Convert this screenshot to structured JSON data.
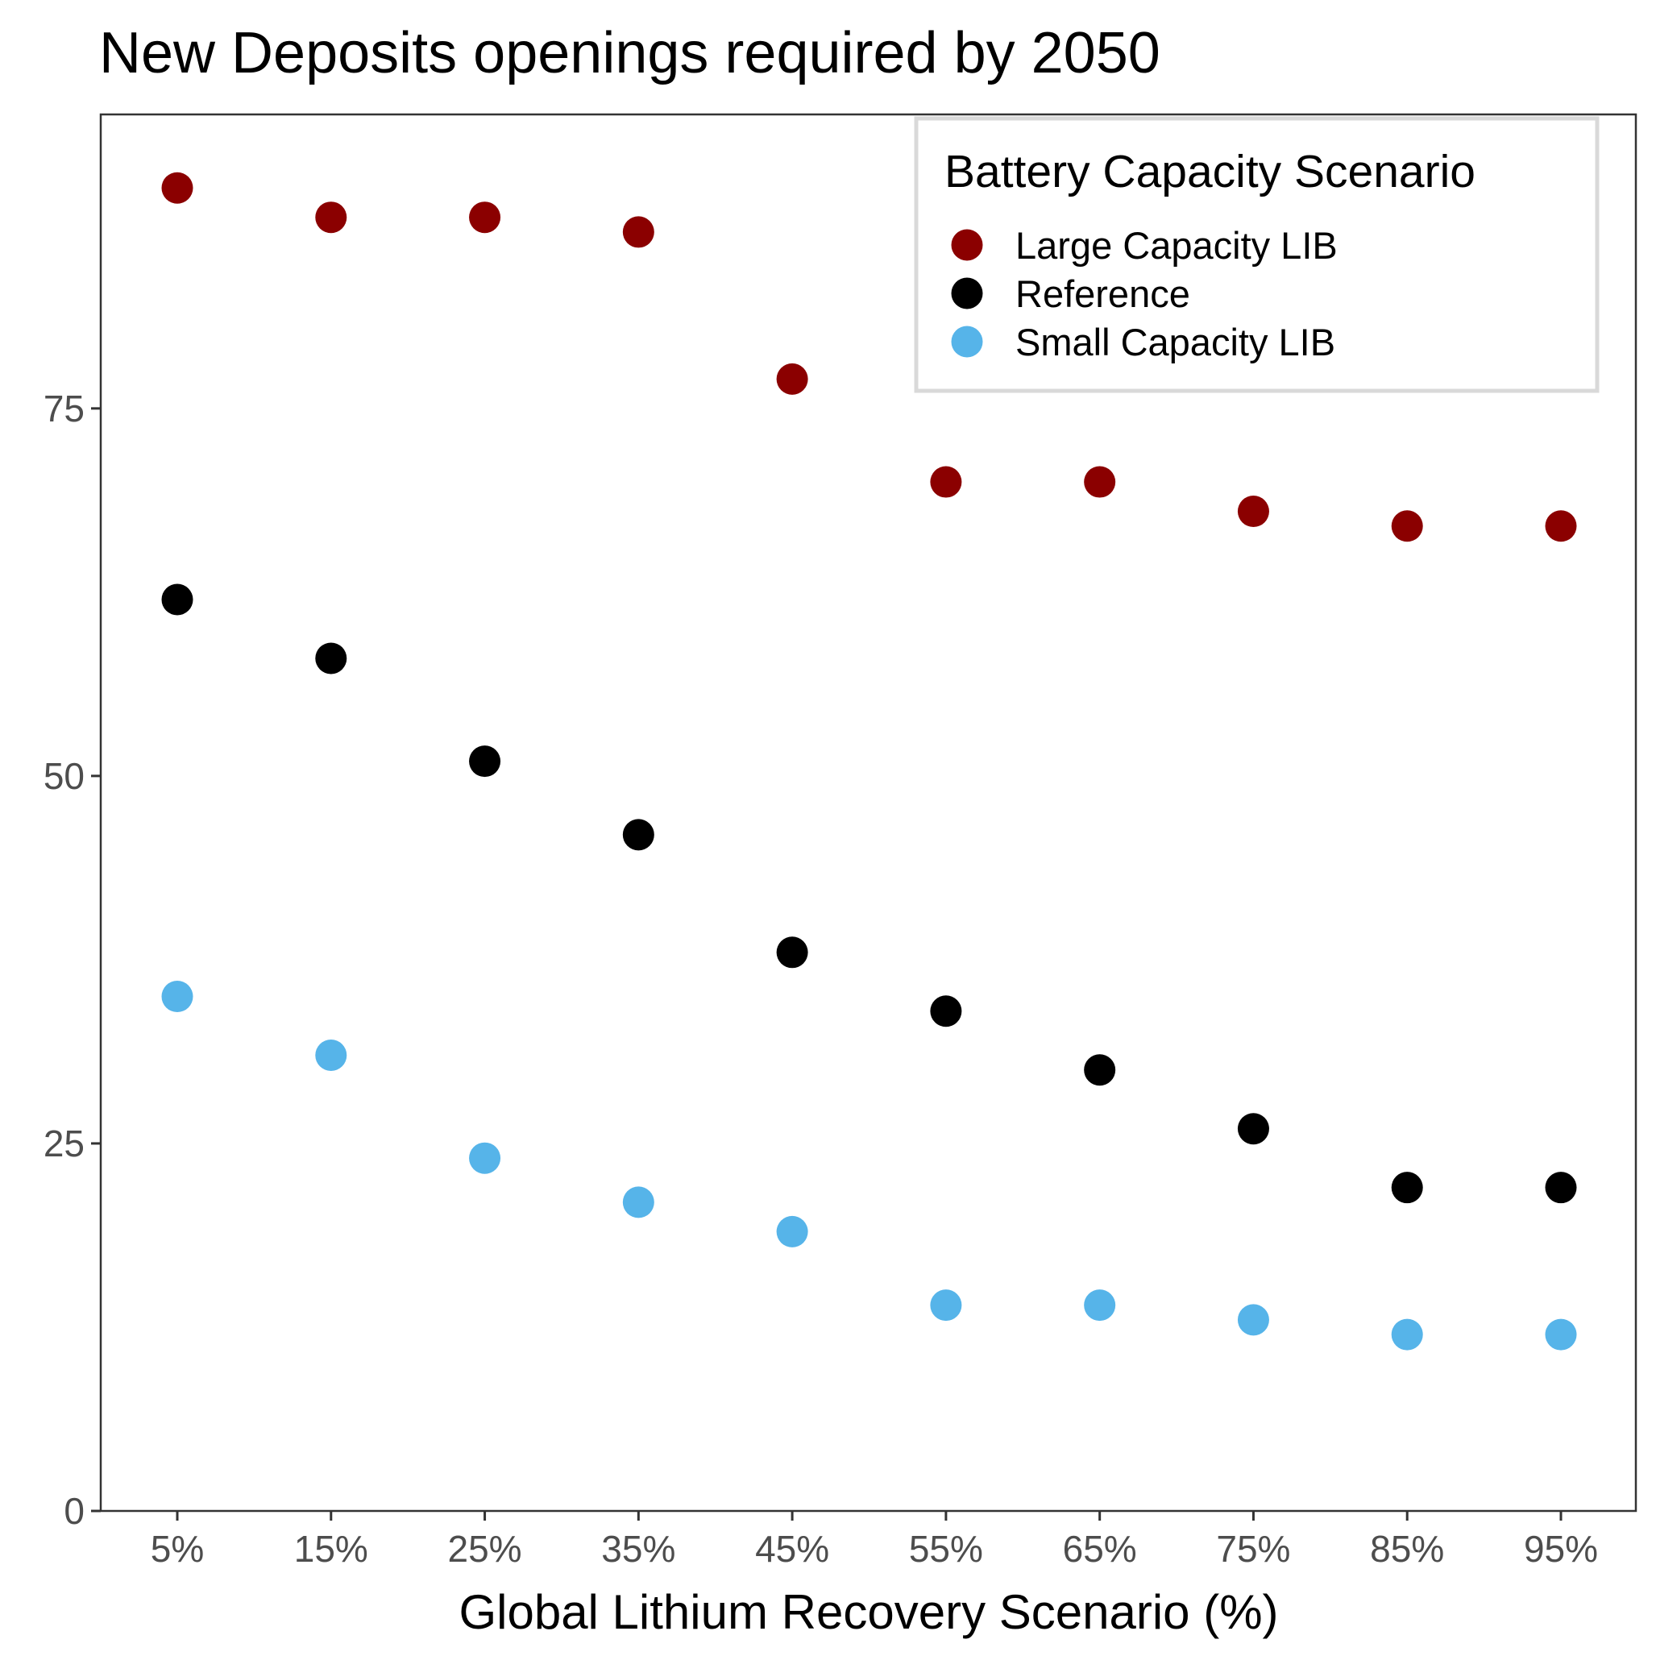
{
  "chart_data": {
    "type": "scatter",
    "title": "New Deposits openings required by 2050",
    "xlabel": "Global Lithium Recovery Scenario (%)",
    "ylabel": "",
    "categories": [
      "5%",
      "15%",
      "25%",
      "35%",
      "45%",
      "55%",
      "65%",
      "75%",
      "85%",
      "95%"
    ],
    "ylim": [
      0,
      95
    ],
    "yticks": [
      0,
      25,
      50,
      75
    ],
    "grid": false,
    "legend": {
      "title": "Battery Capacity Scenario",
      "position": "top-right"
    },
    "series": [
      {
        "name": "Large Capacity LIB",
        "color": "#8B0000",
        "values": [
          90,
          88,
          88,
          87,
          77,
          70,
          70,
          68,
          67,
          67
        ]
      },
      {
        "name": "Reference",
        "color": "#000000",
        "values": [
          62,
          58,
          51,
          46,
          38,
          34,
          30,
          26,
          22,
          22
        ]
      },
      {
        "name": "Small Capacity LIB",
        "color": "#56B4E9",
        "values": [
          35,
          31,
          24,
          21,
          19,
          14,
          14,
          13,
          12,
          12
        ]
      }
    ]
  }
}
